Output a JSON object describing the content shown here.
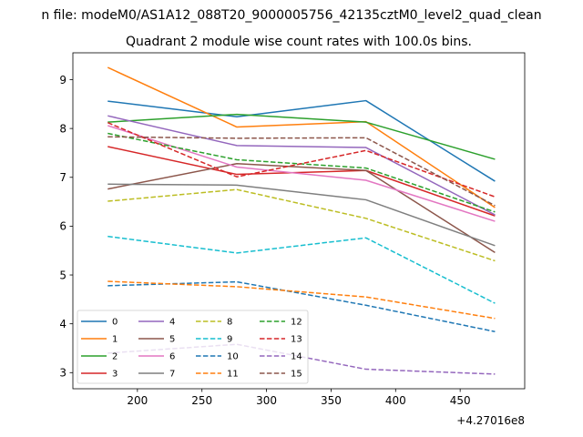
{
  "suptitle": "n file: modeM0/AS1A12_088T20_9000005756_42135cztM0_level2_quad_clean",
  "chart_data": {
    "type": "line",
    "title": "Quadrant 2 module wise count rates with 100.0s bins.",
    "xlabel": "",
    "ylabel": "",
    "x_offset_label": "+4.27016e8",
    "x": [
      177,
      277,
      377,
      477
    ],
    "xlim": [
      150,
      500
    ],
    "ylim": [
      2.67,
      9.55
    ],
    "xticks": [
      200,
      250,
      300,
      350,
      400,
      450
    ],
    "xtick_labels": [
      "200",
      "250",
      "300",
      "350",
      "400",
      "450"
    ],
    "yticks": [
      3,
      4,
      5,
      6,
      7,
      8,
      9
    ],
    "ytick_labels": [
      "3",
      "4",
      "5",
      "6",
      "7",
      "8",
      "9"
    ],
    "grid": false,
    "legend_position": "lower-left",
    "series": [
      {
        "name": "0",
        "color": "#1f77b4",
        "dash": "solid",
        "values": [
          8.56,
          8.24,
          8.57,
          6.92
        ]
      },
      {
        "name": "1",
        "color": "#ff7f0e",
        "dash": "solid",
        "values": [
          9.25,
          8.03,
          8.14,
          6.38
        ]
      },
      {
        "name": "2",
        "color": "#2ca02c",
        "dash": "solid",
        "values": [
          8.13,
          8.29,
          8.13,
          7.37
        ]
      },
      {
        "name": "3",
        "color": "#d62728",
        "dash": "solid",
        "values": [
          7.63,
          7.06,
          7.14,
          6.21
        ]
      },
      {
        "name": "4",
        "color": "#9467bd",
        "dash": "solid",
        "values": [
          8.26,
          7.65,
          7.61,
          6.23
        ]
      },
      {
        "name": "5",
        "color": "#8c564b",
        "dash": "solid",
        "values": [
          6.76,
          7.28,
          7.14,
          5.46
        ]
      },
      {
        "name": "6",
        "color": "#e377c2",
        "dash": "solid",
        "values": [
          8.06,
          7.21,
          6.94,
          6.1
        ]
      },
      {
        "name": "7",
        "color": "#7f7f7f",
        "dash": "solid",
        "values": [
          6.86,
          6.84,
          6.54,
          5.6
        ]
      },
      {
        "name": "8",
        "color": "#bcbd22",
        "dash": "dashed",
        "values": [
          6.51,
          6.75,
          6.16,
          5.29
        ]
      },
      {
        "name": "9",
        "color": "#17becf",
        "dash": "dashed",
        "values": [
          5.79,
          5.45,
          5.76,
          4.42
        ]
      },
      {
        "name": "10",
        "color": "#1f77b4",
        "dash": "dashed",
        "values": [
          4.78,
          4.86,
          4.38,
          3.84
        ]
      },
      {
        "name": "11",
        "color": "#ff7f0e",
        "dash": "dashed",
        "values": [
          4.87,
          4.76,
          4.55,
          4.11
        ]
      },
      {
        "name": "12",
        "color": "#2ca02c",
        "dash": "dashed",
        "values": [
          7.9,
          7.36,
          7.19,
          6.29
        ]
      },
      {
        "name": "13",
        "color": "#d62728",
        "dash": "dashed",
        "values": [
          8.12,
          7.01,
          7.55,
          6.6
        ]
      },
      {
        "name": "14",
        "color": "#9467bd",
        "dash": "dashed",
        "values": [
          3.4,
          3.58,
          3.07,
          2.97
        ]
      },
      {
        "name": "15",
        "color": "#8c564b",
        "dash": "dashed",
        "values": [
          7.83,
          7.8,
          7.81,
          6.42
        ]
      }
    ]
  }
}
